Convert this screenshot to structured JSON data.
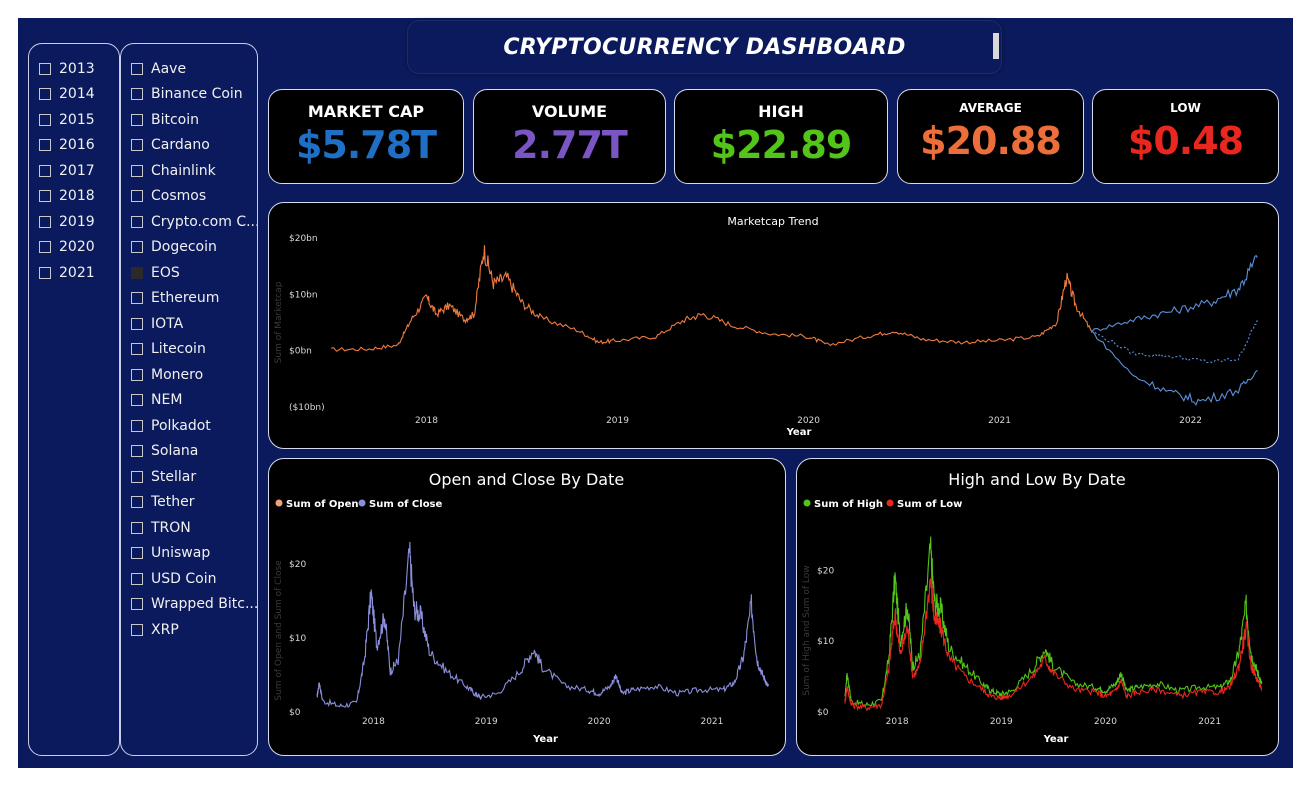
{
  "years": [
    "2013",
    "2014",
    "2015",
    "2016",
    "2017",
    "2018",
    "2019",
    "2020",
    "2021"
  ],
  "coins": [
    "Aave",
    "Binance Coin",
    "Bitcoin",
    "Cardano",
    "Chainlink",
    "Cosmos",
    "Crypto.com C...",
    "Dogecoin",
    "EOS",
    "Ethereum",
    "IOTA",
    "Litecoin",
    "Monero",
    "NEM",
    "Polkadot",
    "Solana",
    "Stellar",
    "Tether",
    "TRON",
    "Uniswap",
    "USD Coin",
    "Wrapped Bitc...",
    "XRP"
  ],
  "selected_coin": "EOS",
  "title": "CRYPTOCURRENCY DASHBOARD",
  "kpis": [
    {
      "label": "MARKET CAP",
      "value": "$5.78T",
      "color": "#1f6fc4"
    },
    {
      "label": "VOLUME",
      "value": "2.77T",
      "color": "#7a55c4"
    },
    {
      "label": "HIGH",
      "value": "$22.89",
      "color": "#52c41a"
    },
    {
      "label": "AVERAGE",
      "value": "$20.88",
      "color": "#ec6f3b"
    },
    {
      "label": "LOW",
      "value": "$0.48",
      "color": "#e8271f"
    }
  ],
  "chart_data": [
    {
      "type": "line",
      "title": "Marketcap Trend",
      "xlabel": "Year",
      "ylabel": "Sum of Marketcap",
      "x_ticks": [
        "2018",
        "2019",
        "2020",
        "2021",
        "2022"
      ],
      "y_ticks": [
        "$20bn",
        "$10bn",
        "$0bn",
        "($10bn)"
      ],
      "ylim": [
        -10,
        20
      ],
      "xlim": [
        2017.5,
        2022.4
      ],
      "series": [
        {
          "color": "#f07a40",
          "points": [
            [
              2017.5,
              0.2
            ],
            [
              2017.7,
              0.3
            ],
            [
              2017.85,
              1.0
            ],
            [
              2017.92,
              5.5
            ],
            [
              2018.0,
              9.5
            ],
            [
              2018.05,
              6.5
            ],
            [
              2018.12,
              8.0
            ],
            [
              2018.2,
              5.5
            ],
            [
              2018.25,
              6.5
            ],
            [
              2018.3,
              18.0
            ],
            [
              2018.35,
              12.0
            ],
            [
              2018.42,
              13.0
            ],
            [
              2018.5,
              8.5
            ],
            [
              2018.6,
              5.8
            ],
            [
              2018.8,
              3.5
            ],
            [
              2018.9,
              1.5
            ],
            [
              2019.0,
              1.8
            ],
            [
              2019.2,
              2.5
            ],
            [
              2019.35,
              5.5
            ],
            [
              2019.45,
              6.5
            ],
            [
              2019.6,
              4.5
            ],
            [
              2019.8,
              3.0
            ],
            [
              2020.0,
              2.5
            ],
            [
              2020.1,
              1.0
            ],
            [
              2020.3,
              2.5
            ],
            [
              2020.45,
              3.5
            ],
            [
              2020.6,
              2.0
            ],
            [
              2020.8,
              1.5
            ],
            [
              2021.0,
              1.8
            ],
            [
              2021.2,
              2.5
            ],
            [
              2021.3,
              5.0
            ],
            [
              2021.35,
              13.0
            ],
            [
              2021.4,
              8.0
            ],
            [
              2021.48,
              3.5
            ]
          ]
        },
        {
          "color": "#5b8fd9",
          "points": [
            [
              2021.48,
              3.5
            ],
            [
              2021.7,
              5.5
            ],
            [
              2021.9,
              7.0
            ],
            [
              2022.1,
              8.5
            ],
            [
              2022.25,
              11.0
            ],
            [
              2022.35,
              16.5
            ]
          ]
        },
        {
          "color": "#5b8fd9",
          "points": [
            [
              2021.48,
              3.5
            ],
            [
              2021.7,
              -0.5
            ],
            [
              2021.9,
              -1.0
            ],
            [
              2022.1,
              -2.0
            ],
            [
              2022.25,
              -1.5
            ],
            [
              2022.35,
              5.5
            ]
          ]
        },
        {
          "color": "#5b8fd9",
          "points": [
            [
              2021.48,
              3.5
            ],
            [
              2021.7,
              -4.5
            ],
            [
              2021.9,
              -7.5
            ],
            [
              2022.05,
              -9.0
            ],
            [
              2022.25,
              -7.0
            ],
            [
              2022.35,
              -3.5
            ]
          ]
        }
      ]
    },
    {
      "type": "line",
      "title": "Open and Close By Date",
      "xlabel": "Year",
      "ylabel": "Sum of Open and Sum of Close",
      "legend": [
        "Sum of Open",
        "Sum of Close"
      ],
      "legend_colors": [
        "#f0a37a",
        "#8a8fdc"
      ],
      "x_ticks": [
        "2018",
        "2019",
        "2020",
        "2021"
      ],
      "y_ticks": [
        "$20",
        "$10",
        "$0"
      ],
      "ylim": [
        0,
        22
      ],
      "xlim": [
        2017.5,
        2021.55
      ],
      "series": [
        {
          "name": "Sum of Close",
          "color": "#8a8fdc",
          "points": [
            [
              2017.5,
              2.0
            ],
            [
              2017.52,
              4.0
            ],
            [
              2017.55,
              1.5
            ],
            [
              2017.7,
              0.8
            ],
            [
              2017.85,
              1.2
            ],
            [
              2017.92,
              7.0
            ],
            [
              2017.98,
              16.0
            ],
            [
              2018.03,
              9.0
            ],
            [
              2018.1,
              13.0
            ],
            [
              2018.15,
              5.5
            ],
            [
              2018.22,
              7.0
            ],
            [
              2018.32,
              21.5
            ],
            [
              2018.36,
              14.0
            ],
            [
              2018.42,
              13.0
            ],
            [
              2018.5,
              8.0
            ],
            [
              2018.65,
              5.5
            ],
            [
              2018.82,
              3.5
            ],
            [
              2018.9,
              2.5
            ],
            [
              2018.95,
              2.0
            ],
            [
              2019.1,
              2.5
            ],
            [
              2019.3,
              5.5
            ],
            [
              2019.42,
              8.5
            ],
            [
              2019.5,
              6.0
            ],
            [
              2019.7,
              3.5
            ],
            [
              2019.9,
              3.0
            ],
            [
              2020.0,
              2.5
            ],
            [
              2020.1,
              3.5
            ],
            [
              2020.15,
              5.0
            ],
            [
              2020.2,
              2.5
            ],
            [
              2020.3,
              3.0
            ],
            [
              2020.5,
              3.5
            ],
            [
              2020.7,
              2.5
            ],
            [
              2020.9,
              3.0
            ],
            [
              2021.1,
              3.0
            ],
            [
              2021.2,
              4.0
            ],
            [
              2021.28,
              7.5
            ],
            [
              2021.35,
              14.5
            ],
            [
              2021.4,
              7.0
            ],
            [
              2021.45,
              5.0
            ],
            [
              2021.5,
              3.5
            ]
          ]
        }
      ]
    },
    {
      "type": "line",
      "title": "High and Low By Date",
      "xlabel": "Year",
      "ylabel": "Sum of High and Sum of Low",
      "legend": [
        "Sum of High",
        "Sum of Low"
      ],
      "legend_colors": [
        "#52c41a",
        "#e8271f"
      ],
      "x_ticks": [
        "2018",
        "2019",
        "2020",
        "2021"
      ],
      "y_ticks": [
        "$20",
        "$10",
        "$0"
      ],
      "ylim": [
        0,
        23
      ],
      "xlim": [
        2017.5,
        2021.55
      ],
      "series": [
        {
          "name": "Sum of High",
          "color": "#52c41a",
          "points": [
            [
              2017.5,
              2.0
            ],
            [
              2017.52,
              5.5
            ],
            [
              2017.56,
              1.5
            ],
            [
              2017.7,
              1.0
            ],
            [
              2017.85,
              1.5
            ],
            [
              2017.92,
              7.5
            ],
            [
              2017.98,
              19.0
            ],
            [
              2018.03,
              10.0
            ],
            [
              2018.1,
              15.0
            ],
            [
              2018.15,
              6.5
            ],
            [
              2018.22,
              8.0
            ],
            [
              2018.32,
              23.0
            ],
            [
              2018.36,
              15.5
            ],
            [
              2018.42,
              14.5
            ],
            [
              2018.5,
              9.0
            ],
            [
              2018.65,
              6.5
            ],
            [
              2018.82,
              4.0
            ],
            [
              2018.9,
              3.0
            ],
            [
              2019.0,
              2.5
            ],
            [
              2019.1,
              3.0
            ],
            [
              2019.3,
              6.0
            ],
            [
              2019.42,
              9.0
            ],
            [
              2019.5,
              6.5
            ],
            [
              2019.7,
              4.0
            ],
            [
              2019.9,
              3.5
            ],
            [
              2020.0,
              3.0
            ],
            [
              2020.1,
              4.0
            ],
            [
              2020.15,
              5.5
            ],
            [
              2020.2,
              3.0
            ],
            [
              2020.3,
              3.5
            ],
            [
              2020.5,
              4.0
            ],
            [
              2020.7,
              3.0
            ],
            [
              2020.9,
              3.5
            ],
            [
              2021.1,
              3.5
            ],
            [
              2021.2,
              4.5
            ],
            [
              2021.28,
              8.5
            ],
            [
              2021.35,
              15.0
            ],
            [
              2021.4,
              8.0
            ],
            [
              2021.45,
              6.0
            ],
            [
              2021.5,
              4.0
            ]
          ]
        },
        {
          "name": "Sum of Low",
          "color": "#e8271f",
          "points": [
            [
              2017.5,
              1.5
            ],
            [
              2017.52,
              3.5
            ],
            [
              2017.56,
              1.0
            ],
            [
              2017.7,
              0.6
            ],
            [
              2017.85,
              1.0
            ],
            [
              2017.92,
              6.0
            ],
            [
              2017.98,
              14.0
            ],
            [
              2018.03,
              8.0
            ],
            [
              2018.1,
              12.0
            ],
            [
              2018.15,
              5.0
            ],
            [
              2018.22,
              6.5
            ],
            [
              2018.32,
              19.0
            ],
            [
              2018.36,
              13.0
            ],
            [
              2018.42,
              12.0
            ],
            [
              2018.5,
              7.5
            ],
            [
              2018.65,
              5.0
            ],
            [
              2018.82,
              3.2
            ],
            [
              2018.9,
              2.2
            ],
            [
              2019.0,
              2.0
            ],
            [
              2019.1,
              2.5
            ],
            [
              2019.3,
              5.0
            ],
            [
              2019.42,
              7.5
            ],
            [
              2019.5,
              5.5
            ],
            [
              2019.7,
              3.2
            ],
            [
              2019.9,
              2.8
            ],
            [
              2020.0,
              2.2
            ],
            [
              2020.1,
              3.0
            ],
            [
              2020.15,
              4.5
            ],
            [
              2020.2,
              2.2
            ],
            [
              2020.3,
              2.8
            ],
            [
              2020.5,
              3.2
            ],
            [
              2020.7,
              2.3
            ],
            [
              2020.9,
              2.8
            ],
            [
              2021.1,
              2.8
            ],
            [
              2021.2,
              3.6
            ],
            [
              2021.28,
              6.5
            ],
            [
              2021.35,
              12.0
            ],
            [
              2021.4,
              6.5
            ],
            [
              2021.45,
              4.8
            ],
            [
              2021.5,
              3.3
            ]
          ]
        }
      ]
    }
  ]
}
